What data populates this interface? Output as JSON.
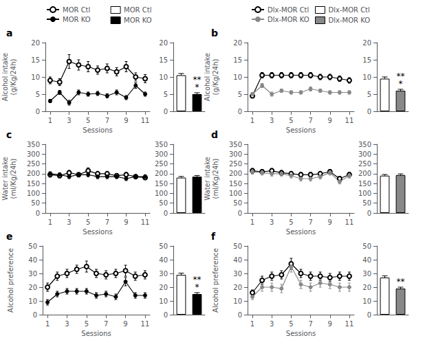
{
  "chart_data": [
    {
      "type": "line",
      "title": "a",
      "xlabel": "Sessions",
      "ylabel": "Alcohol intake\n(g/Kg/24h)",
      "x": [
        1,
        2,
        3,
        4,
        5,
        6,
        7,
        8,
        9,
        10,
        11
      ],
      "xlim": [
        0.5,
        11.5
      ],
      "xticks": [
        1,
        3,
        5,
        7,
        9,
        11
      ],
      "ylim": [
        0,
        20
      ],
      "yticks": [
        0,
        5,
        10,
        15,
        20
      ],
      "grid": false,
      "legend": "top",
      "series": [
        {
          "name": "MOR Ctl",
          "color": "black",
          "marker": "open circle",
          "values": [
            9.0,
            8.5,
            14.5,
            13.5,
            13.0,
            12.0,
            12.5,
            11.5,
            13.0,
            10.0,
            9.5
          ],
          "yerr": [
            1.0,
            1.0,
            2.0,
            1.5,
            1.5,
            1.2,
            1.3,
            1.2,
            1.5,
            1.2,
            1.2
          ]
        },
        {
          "name": "MOR KO",
          "color": "black",
          "marker": "circle",
          "values": [
            3.0,
            5.5,
            2.5,
            5.5,
            5.0,
            5.2,
            4.5,
            5.5,
            4.0,
            7.5,
            5.0
          ],
          "yerr": [
            0.5,
            0.6,
            0.7,
            0.7,
            0.6,
            0.6,
            0.6,
            0.7,
            0.6,
            0.8,
            0.6
          ]
        }
      ]
    },
    {
      "type": "bar",
      "categories": [
        null,
        null
      ],
      "ylim": [
        0,
        20
      ],
      "yticks": [
        0,
        5,
        10,
        15,
        20
      ],
      "grid": false,
      "legend": "top",
      "series": [
        {
          "name": "MOR Ctl",
          "color": "white",
          "values": [
            10.5,
            null
          ],
          "yerr_upper": [
            0.5,
            null
          ]
        },
        {
          "name": "MOR KO",
          "color": "black",
          "values": [
            null,
            5.0
          ],
          "yerr_upper": [
            null,
            0.4
          ],
          "annotations": [
            "*",
            "**"
          ]
        }
      ]
    },
    {
      "type": "line",
      "title": "b",
      "xlabel": "Sessions",
      "ylabel": "Alcohol intake\n(g/Kg/24h)",
      "x": [
        1,
        2,
        3,
        4,
        5,
        6,
        7,
        8,
        9,
        10,
        11
      ],
      "xlim": [
        0.5,
        11.5
      ],
      "xticks": [
        1,
        3,
        5,
        7,
        9,
        11
      ],
      "ylim": [
        0,
        20
      ],
      "yticks": [
        0,
        5,
        10,
        15,
        20
      ],
      "grid": false,
      "legend": "top",
      "series": [
        {
          "name": "Dlx-MOR Ctl",
          "color": "black",
          "marker": "open circle",
          "values": [
            4.5,
            10.5,
            10.5,
            10.5,
            10.5,
            10.5,
            10.5,
            10.0,
            10.0,
            9.5,
            9.0
          ],
          "yerr": [
            0.5,
            0.8,
            0.8,
            0.8,
            0.8,
            0.8,
            0.8,
            0.8,
            0.8,
            0.8,
            0.8
          ]
        },
        {
          "name": "Dlx-MOR KO",
          "color": "#888888",
          "marker": "circle",
          "values": [
            5.0,
            7.5,
            5.0,
            6.0,
            5.5,
            5.5,
            6.5,
            6.0,
            5.5,
            5.5,
            5.5
          ],
          "yerr": [
            0.5,
            0.6,
            0.6,
            0.5,
            0.5,
            0.5,
            0.6,
            0.5,
            0.5,
            0.5,
            0.5
          ]
        }
      ]
    },
    {
      "type": "bar",
      "categories": [
        null,
        null
      ],
      "ylim": [
        0,
        20
      ],
      "yticks": [
        0,
        5,
        10,
        15,
        20
      ],
      "grid": false,
      "legend": "top",
      "series": [
        {
          "name": "Dlx-MOR Ctl",
          "color": "white",
          "values": [
            9.5,
            null
          ],
          "yerr_upper": [
            0.5,
            null
          ]
        },
        {
          "name": "Dlx-MOR KO",
          "color": "#888888",
          "values": [
            null,
            6.0
          ],
          "yerr_upper": [
            null,
            0.4
          ],
          "annotations": [
            "*",
            "**"
          ]
        }
      ]
    },
    {
      "type": "line",
      "title": "c",
      "xlabel": "Sessions",
      "ylabel": "Water intake\n(ml/Kg/24h)",
      "x": [
        1,
        2,
        3,
        4,
        5,
        6,
        7,
        8,
        9,
        10,
        11
      ],
      "xlim": [
        0.5,
        11.5
      ],
      "xticks": [
        1,
        3,
        5,
        7,
        9,
        11
      ],
      "ylim": [
        0,
        350
      ],
      "yticks": [
        0,
        50,
        100,
        150,
        200,
        250,
        300,
        350
      ],
      "grid": false,
      "series": [
        {
          "color": "black",
          "marker": "open circle",
          "values": [
            195,
            190,
            205,
            195,
            215,
            200,
            200,
            190,
            195,
            185,
            180
          ],
          "yerr": [
            12,
            10,
            12,
            10,
            15,
            12,
            12,
            10,
            12,
            10,
            10
          ]
        },
        {
          "color": "black",
          "marker": "circle",
          "values": [
            200,
            195,
            185,
            195,
            195,
            185,
            185,
            185,
            175,
            185,
            185
          ],
          "yerr": [
            10,
            10,
            10,
            10,
            10,
            10,
            10,
            10,
            10,
            10,
            10
          ]
        }
      ]
    },
    {
      "type": "bar",
      "categories": [
        null,
        null
      ],
      "ylim": [
        0,
        350
      ],
      "yticks": [
        0,
        50,
        100,
        150,
        200,
        250,
        300,
        350
      ],
      "grid": false,
      "series": [
        {
          "color": "white",
          "values": [
            180,
            null
          ],
          "yerr_upper": [
            6,
            null
          ]
        },
        {
          "color": "black",
          "values": [
            null,
            185
          ],
          "yerr_upper": [
            null,
            6
          ]
        }
      ]
    },
    {
      "type": "line",
      "title": "d",
      "xlabel": "Sessions",
      "ylabel": "Water intake\n(ml/Kg/24h)",
      "x": [
        1,
        2,
        3,
        4,
        5,
        6,
        7,
        8,
        9,
        10,
        11
      ],
      "xlim": [
        0.5,
        11.5
      ],
      "xticks": [
        1,
        3,
        5,
        7,
        9,
        11
      ],
      "ylim": [
        0,
        350
      ],
      "yticks": [
        0,
        50,
        100,
        150,
        200,
        250,
        300,
        350
      ],
      "grid": false,
      "series": [
        {
          "color": "black",
          "marker": "open circle",
          "values": [
            215,
            210,
            215,
            205,
            200,
            195,
            195,
            200,
            210,
            175,
            195
          ],
          "yerr": [
            12,
            12,
            12,
            12,
            12,
            12,
            12,
            12,
            12,
            12,
            12
          ]
        },
        {
          "color": "#888888",
          "marker": "circle",
          "values": [
            210,
            205,
            200,
            200,
            190,
            175,
            175,
            185,
            205,
            160,
            190
          ],
          "yerr": [
            12,
            12,
            12,
            12,
            12,
            12,
            12,
            12,
            12,
            12,
            12
          ]
        }
      ]
    },
    {
      "type": "bar",
      "categories": [
        null,
        null
      ],
      "ylim": [
        0,
        350
      ],
      "yticks": [
        0,
        50,
        100,
        150,
        200,
        250,
        300,
        350
      ],
      "grid": false,
      "series": [
        {
          "color": "white",
          "values": [
            190,
            null
          ],
          "yerr_upper": [
            6,
            null
          ]
        },
        {
          "color": "#888888",
          "values": [
            null,
            193
          ],
          "yerr_upper": [
            null,
            6
          ]
        }
      ]
    },
    {
      "type": "line",
      "title": "e",
      "xlabel": "Sessions",
      "ylabel": "Alcohol preference",
      "x": [
        1,
        2,
        3,
        4,
        5,
        6,
        7,
        8,
        9,
        10,
        11
      ],
      "xlim": [
        0.5,
        11.5
      ],
      "xticks": [
        1,
        3,
        5,
        7,
        9,
        11
      ],
      "ylim": [
        0,
        50
      ],
      "yticks": [
        0,
        10,
        20,
        30,
        40,
        50
      ],
      "grid": false,
      "series": [
        {
          "color": "black",
          "marker": "open circle",
          "values": [
            20,
            28,
            30,
            33,
            35,
            30,
            29,
            30,
            32,
            28,
            29
          ],
          "yerr": [
            3,
            3,
            3,
            3,
            4,
            3,
            3,
            3,
            4,
            3,
            3
          ]
        },
        {
          "color": "black",
          "marker": "circle",
          "values": [
            9,
            15,
            17,
            17,
            17,
            14,
            15,
            13,
            24,
            14,
            14
          ],
          "yerr": [
            2,
            2,
            2,
            2,
            2,
            2,
            2,
            2,
            3,
            2,
            2
          ]
        }
      ]
    },
    {
      "type": "bar",
      "categories": [
        null,
        null
      ],
      "ylim": [
        0,
        50
      ],
      "yticks": [
        0,
        10,
        20,
        30,
        40,
        50
      ],
      "grid": false,
      "series": [
        {
          "color": "white",
          "values": [
            29,
            null
          ],
          "yerr_upper": [
            1.2,
            null
          ]
        },
        {
          "color": "black",
          "values": [
            null,
            15
          ],
          "yerr_upper": [
            null,
            1.0
          ],
          "annotations": [
            "*",
            "**"
          ]
        }
      ]
    },
    {
      "type": "line",
      "title": "f",
      "xlabel": "Sessions",
      "ylabel": "Alcohol preference",
      "x": [
        1,
        2,
        3,
        4,
        5,
        6,
        7,
        8,
        9,
        10,
        11
      ],
      "xlim": [
        0.5,
        11.5
      ],
      "xticks": [
        1,
        3,
        5,
        7,
        9,
        11
      ],
      "ylim": [
        0,
        50
      ],
      "yticks": [
        0,
        10,
        20,
        30,
        40,
        50
      ],
      "grid": false,
      "series": [
        {
          "color": "black",
          "marker": "open circle",
          "values": [
            16,
            25,
            28,
            29,
            37,
            30,
            28,
            28,
            27,
            28,
            28
          ],
          "yerr": [
            2,
            3,
            3,
            3,
            4,
            3,
            3,
            3,
            3,
            3,
            3
          ]
        },
        {
          "color": "#888888",
          "marker": "circle",
          "values": [
            13,
            20,
            20,
            19,
            35,
            22,
            20,
            23,
            22,
            20,
            20
          ],
          "yerr": [
            2,
            3,
            3,
            3,
            4,
            3,
            3,
            3,
            3,
            3,
            3
          ]
        }
      ]
    },
    {
      "type": "bar",
      "categories": [
        null,
        null
      ],
      "ylim": [
        0,
        50
      ],
      "yticks": [
        0,
        10,
        20,
        30,
        40,
        50
      ],
      "grid": false,
      "series": [
        {
          "color": "white",
          "values": [
            27,
            null
          ],
          "yerr_upper": [
            1.2,
            null
          ]
        },
        {
          "color": "#888888",
          "values": [
            null,
            19
          ],
          "yerr_upper": [
            null,
            1.0
          ],
          "annotations": [
            "**"
          ]
        }
      ]
    }
  ]
}
